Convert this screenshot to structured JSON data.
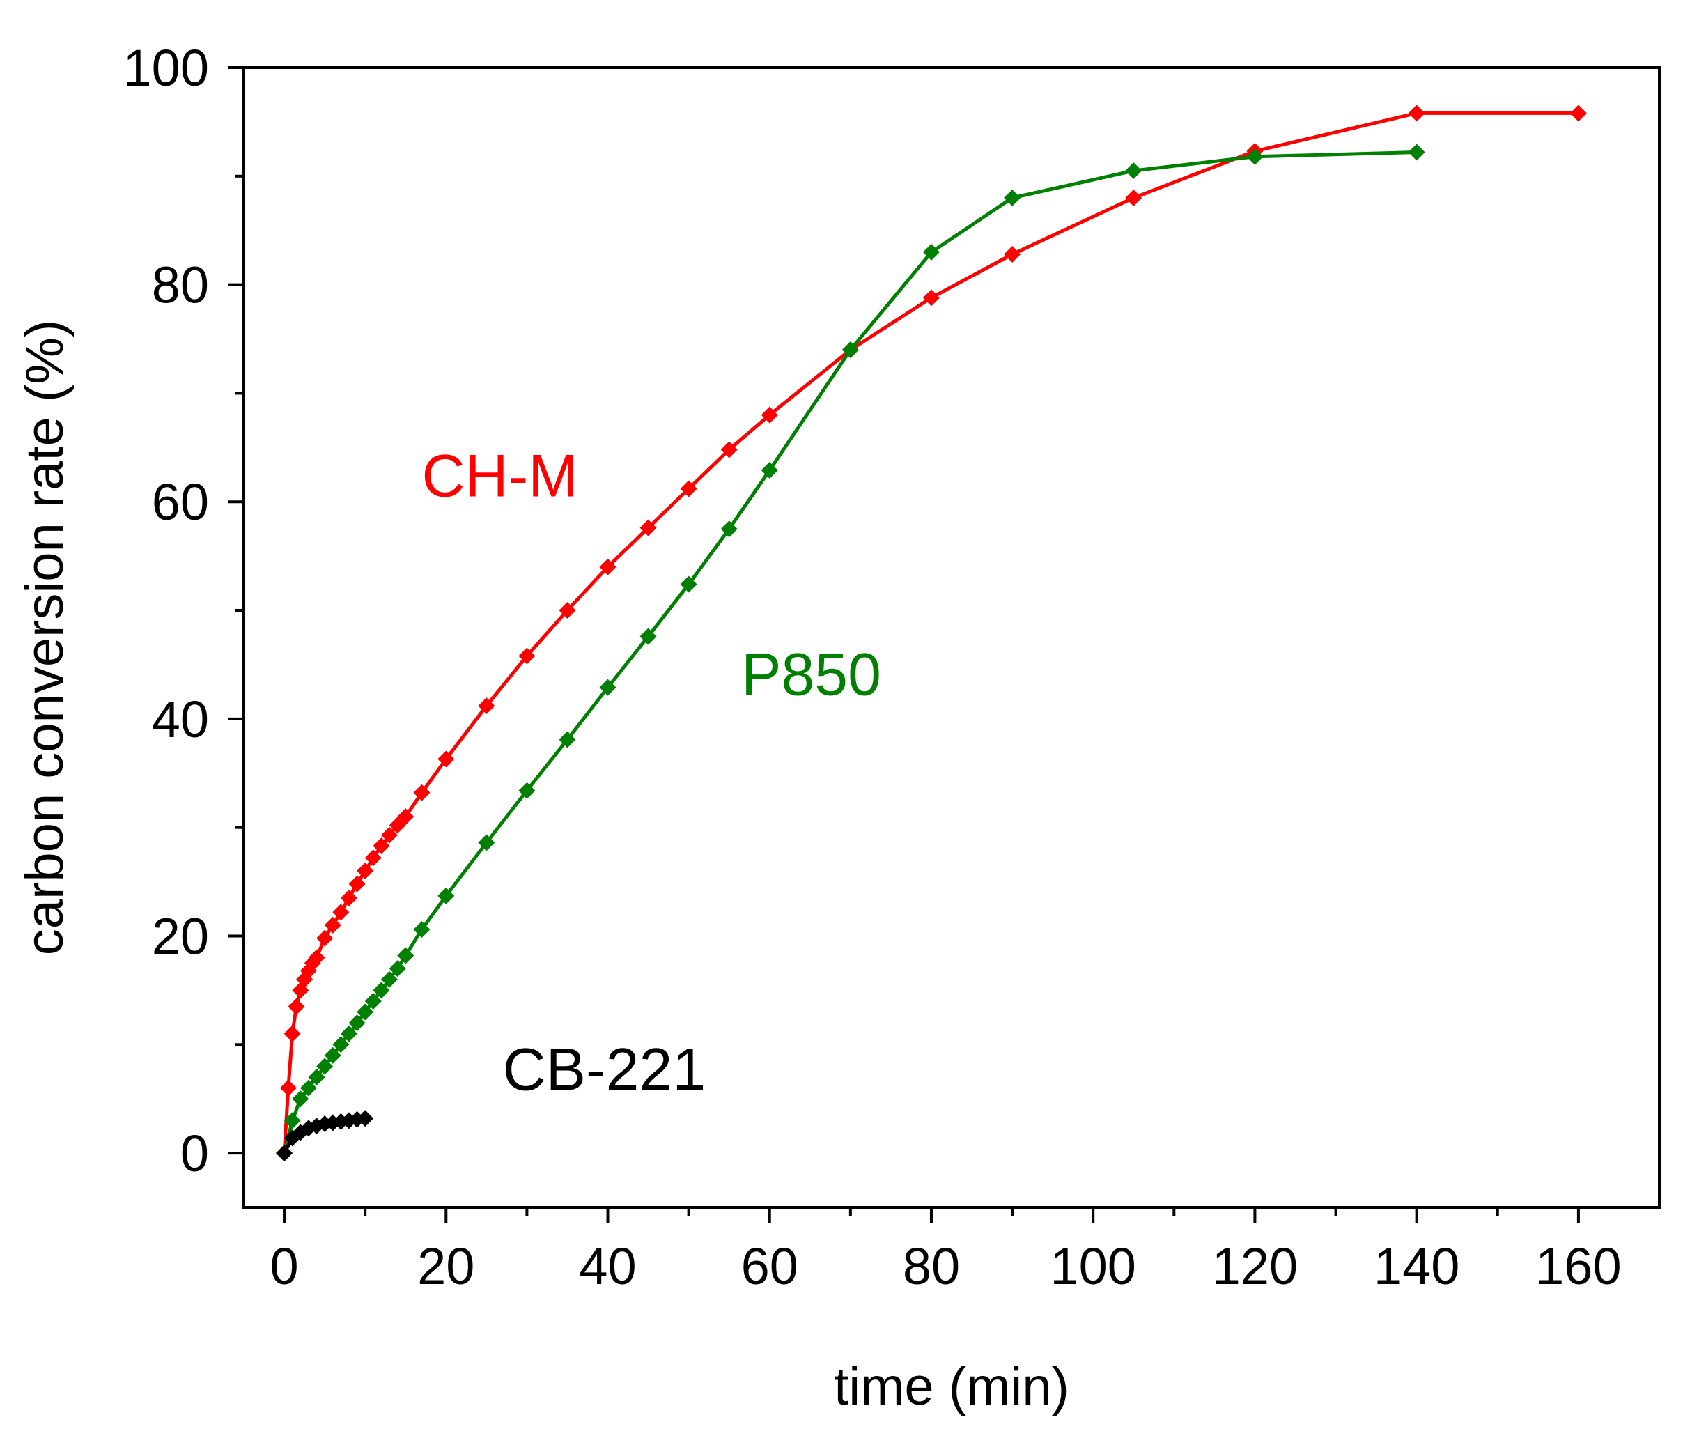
{
  "chart_data": {
    "type": "line",
    "title": "",
    "xlabel": "time (min)",
    "ylabel": "carbon conversion rate (%)",
    "xlim": [
      -5,
      170
    ],
    "ylim": [
      -5,
      100
    ],
    "xticks": [
      0,
      20,
      40,
      60,
      80,
      100,
      120,
      140,
      160
    ],
    "yticks": [
      0,
      20,
      40,
      60,
      80,
      100
    ],
    "xtick_labels": [
      "0",
      "20",
      "40",
      "60",
      "80",
      "100",
      "120",
      "140",
      "160"
    ],
    "ytick_labels": [
      "0",
      "20",
      "40",
      "60",
      "80",
      "100"
    ],
    "grid": false,
    "legend": "inline labels",
    "series": [
      {
        "name": "CH-M",
        "color": "#ff0000",
        "marker": "diamond",
        "x": [
          0,
          0.5,
          1,
          1.5,
          2,
          2.5,
          3,
          3.5,
          4,
          5,
          6,
          7,
          8,
          9,
          10,
          11,
          12,
          13,
          14,
          15,
          17,
          20,
          25,
          30,
          35,
          40,
          45,
          50,
          55,
          60,
          70,
          80,
          90,
          105,
          120,
          140,
          160
        ],
        "y": [
          0,
          6,
          11,
          13.5,
          15,
          16,
          16.8,
          17.5,
          18,
          19.8,
          21,
          22.2,
          23.5,
          24.8,
          26,
          27.2,
          28.3,
          29.3,
          30.2,
          31,
          33.2,
          36.3,
          41.2,
          45.8,
          50,
          54,
          57.6,
          61.2,
          64.8,
          68,
          74,
          78.8,
          82.8,
          88,
          92.3,
          95.8,
          95.8
        ]
      },
      {
        "name": "P850",
        "color": "#008000",
        "marker": "diamond",
        "x": [
          0,
          1,
          2,
          3,
          4,
          5,
          6,
          7,
          8,
          9,
          10,
          11,
          12,
          13,
          14,
          15,
          17,
          20,
          25,
          30,
          35,
          40,
          45,
          50,
          55,
          60,
          70,
          80,
          90,
          105,
          120,
          140
        ],
        "y": [
          0,
          3,
          5,
          6,
          7,
          8,
          9,
          10,
          11,
          12,
          13,
          14,
          15,
          16,
          17,
          18.2,
          20.6,
          23.7,
          28.6,
          33.4,
          38.1,
          42.9,
          47.6,
          52.4,
          57.5,
          62.9,
          74,
          83,
          88,
          90.5,
          91.8,
          92.2
        ]
      },
      {
        "name": "CB-221",
        "color": "#000000",
        "marker": "diamond",
        "x": [
          0,
          1,
          2,
          3,
          4,
          5,
          6,
          7,
          8,
          9,
          10
        ],
        "y": [
          0,
          1.4,
          1.9,
          2.3,
          2.5,
          2.7,
          2.8,
          2.9,
          3.0,
          3.1,
          3.2
        ]
      }
    ],
    "annotations": [
      {
        "text": "CH-M",
        "x": 17,
        "y": 60.5,
        "color": "#ff0000"
      },
      {
        "text": "P850",
        "x": 56.5,
        "y": 42.2,
        "color": "#008000"
      },
      {
        "text": "CB-221",
        "x": 27,
        "y": 5.8,
        "color": "#000000"
      }
    ]
  }
}
